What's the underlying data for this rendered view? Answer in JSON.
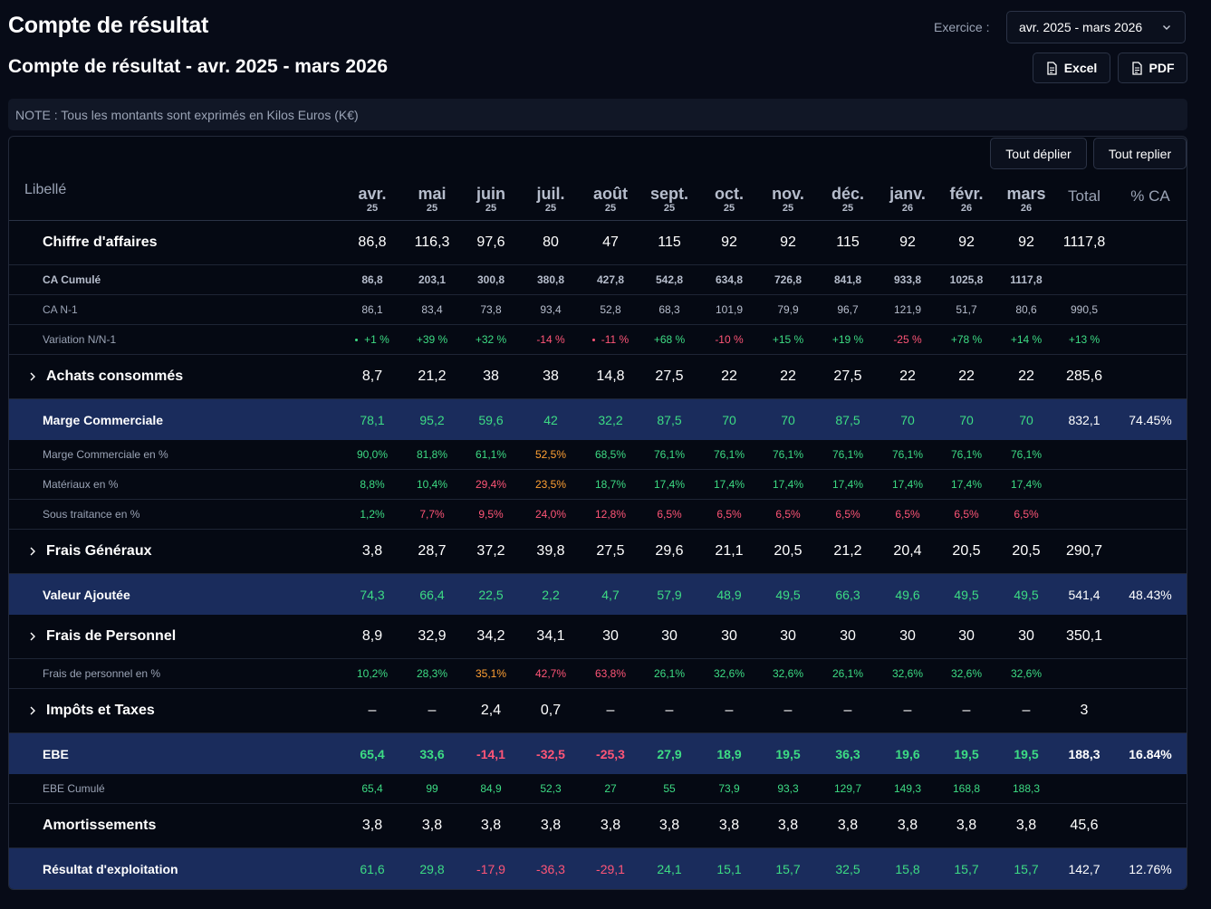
{
  "header": {
    "title": "Compte de résultat",
    "subtitle": "Compte de résultat - avr. 2025 - mars 2026",
    "exercice_label": "Exercice :",
    "exercice_value": "avr. 2025 - mars 2026",
    "excel_label": "Excel",
    "pdf_label": "PDF"
  },
  "note": "NOTE : Tous les montants sont exprimés en Kilos Euros (K€)",
  "table": {
    "expand_all": "Tout déplier",
    "collapse_all": "Tout replier",
    "col_label": "Libellé",
    "months": [
      {
        "m": "avr.",
        "y": "25"
      },
      {
        "m": "mai",
        "y": "25"
      },
      {
        "m": "juin",
        "y": "25"
      },
      {
        "m": "juil.",
        "y": "25"
      },
      {
        "m": "août",
        "y": "25"
      },
      {
        "m": "sept.",
        "y": "25"
      },
      {
        "m": "oct.",
        "y": "25"
      },
      {
        "m": "nov.",
        "y": "25"
      },
      {
        "m": "déc.",
        "y": "25"
      },
      {
        "m": "janv.",
        "y": "26"
      },
      {
        "m": "févr.",
        "y": "26"
      },
      {
        "m": "mars",
        "y": "26"
      }
    ],
    "col_total": "Total",
    "col_pct": "% CA",
    "rows": [
      {
        "label": "Chiffre d'affaires",
        "kind": "major",
        "values": [
          "86,8",
          "116,3",
          "97,6",
          "80",
          "47",
          "115",
          "92",
          "92",
          "115",
          "92",
          "92",
          "92"
        ],
        "total": "1117,8",
        "pct": ""
      },
      {
        "label": "CA Cumulé",
        "kind": "sub-bold",
        "values": [
          "86,8",
          "203,1",
          "300,8",
          "380,8",
          "427,8",
          "542,8",
          "634,8",
          "726,8",
          "841,8",
          "933,8",
          "1025,8",
          "1117,8"
        ],
        "total": "",
        "pct": ""
      },
      {
        "label": "CA N-1",
        "kind": "sub",
        "values": [
          "86,1",
          "83,4",
          "73,8",
          "93,4",
          "52,8",
          "68,3",
          "101,9",
          "79,9",
          "96,7",
          "121,9",
          "51,7",
          "80,6"
        ],
        "total": "990,5",
        "pct": ""
      },
      {
        "label": "Variation N/N-1",
        "kind": "sub-var",
        "values": [
          "+1 %",
          "+39 %",
          "+32 %",
          "-14 %",
          "-11 %",
          "+68 %",
          "-10 %",
          "+15 %",
          "+19 %",
          "-25 %",
          "+78 %",
          "+14 %"
        ],
        "total": "+13 %",
        "pct": ""
      },
      {
        "label": "Achats consommés",
        "kind": "major-exp",
        "values": [
          "8,7",
          "21,2",
          "38",
          "38",
          "14,8",
          "27,5",
          "22",
          "22",
          "27,5",
          "22",
          "22",
          "22"
        ],
        "total": "285,6",
        "pct": ""
      },
      {
        "label": "Marge Commerciale",
        "kind": "hl",
        "values": [
          "78,1",
          "95,2",
          "59,6",
          "42",
          "32,2",
          "87,5",
          "70",
          "70",
          "87,5",
          "70",
          "70",
          "70"
        ],
        "total": "832,1",
        "pct": "74.45%"
      },
      {
        "label": "Marge Commerciale en %",
        "kind": "sub-pct",
        "values": [
          "90,0%",
          "81,8%",
          "61,1%",
          "52,5%",
          "68,5%",
          "76,1%",
          "76,1%",
          "76,1%",
          "76,1%",
          "76,1%",
          "76,1%",
          "76,1%"
        ],
        "colors": [
          "g",
          "g",
          "g",
          "o",
          "g",
          "g",
          "g",
          "g",
          "g",
          "g",
          "g",
          "g"
        ],
        "total": "",
        "pct": ""
      },
      {
        "label": "Matériaux en %",
        "kind": "sub-pct",
        "values": [
          "8,8%",
          "10,4%",
          "29,4%",
          "23,5%",
          "18,7%",
          "17,4%",
          "17,4%",
          "17,4%",
          "17,4%",
          "17,4%",
          "17,4%",
          "17,4%"
        ],
        "colors": [
          "g",
          "g",
          "r",
          "o",
          "g",
          "g",
          "g",
          "g",
          "g",
          "g",
          "g",
          "g"
        ],
        "total": "",
        "pct": ""
      },
      {
        "label": "Sous traitance en %",
        "kind": "sub-pct",
        "values": [
          "1,2%",
          "7,7%",
          "9,5%",
          "24,0%",
          "12,8%",
          "6,5%",
          "6,5%",
          "6,5%",
          "6,5%",
          "6,5%",
          "6,5%",
          "6,5%"
        ],
        "colors": [
          "g",
          "r",
          "r",
          "r",
          "r",
          "r",
          "r",
          "r",
          "r",
          "r",
          "r",
          "r"
        ],
        "total": "",
        "pct": ""
      },
      {
        "label": "Frais Généraux",
        "kind": "major-exp",
        "values": [
          "3,8",
          "28,7",
          "37,2",
          "39,8",
          "27,5",
          "29,6",
          "21,1",
          "20,5",
          "21,2",
          "20,4",
          "20,5",
          "20,5"
        ],
        "total": "290,7",
        "pct": ""
      },
      {
        "label": "Valeur Ajoutée",
        "kind": "hl",
        "values": [
          "74,3",
          "66,4",
          "22,5",
          "2,2",
          "4,7",
          "57,9",
          "48,9",
          "49,5",
          "66,3",
          "49,6",
          "49,5",
          "49,5"
        ],
        "total": "541,4",
        "pct": "48.43%"
      },
      {
        "label": "Frais de Personnel",
        "kind": "major-exp",
        "values": [
          "8,9",
          "32,9",
          "34,2",
          "34,1",
          "30",
          "30",
          "30",
          "30",
          "30",
          "30",
          "30",
          "30"
        ],
        "total": "350,1",
        "pct": ""
      },
      {
        "label": "Frais de personnel en %",
        "kind": "sub-pct",
        "values": [
          "10,2%",
          "28,3%",
          "35,1%",
          "42,7%",
          "63,8%",
          "26,1%",
          "32,6%",
          "32,6%",
          "26,1%",
          "32,6%",
          "32,6%",
          "32,6%"
        ],
        "colors": [
          "g",
          "g",
          "o",
          "r",
          "r",
          "g",
          "g",
          "g",
          "g",
          "g",
          "g",
          "g"
        ],
        "total": "",
        "pct": ""
      },
      {
        "label": "Impôts et Taxes",
        "kind": "major-exp",
        "values": [
          "–",
          "–",
          "2,4",
          "0,7",
          "–",
          "–",
          "–",
          "–",
          "–",
          "–",
          "–",
          "–"
        ],
        "total": "3",
        "pct": ""
      },
      {
        "label": "EBE",
        "kind": "hl-bold",
        "values": [
          "65,4",
          "33,6",
          "-14,1",
          "-32,5",
          "-25,3",
          "27,9",
          "18,9",
          "19,5",
          "36,3",
          "19,6",
          "19,5",
          "19,5"
        ],
        "total": "188,3",
        "pct": "16.84%"
      },
      {
        "label": "EBE Cumulé",
        "kind": "sub-green",
        "values": [
          "65,4",
          "99",
          "84,9",
          "52,3",
          "27",
          "55",
          "73,9",
          "93,3",
          "129,7",
          "149,3",
          "168,8",
          "188,3"
        ],
        "total": "",
        "pct": ""
      },
      {
        "label": "Amortissements",
        "kind": "major",
        "values": [
          "3,8",
          "3,8",
          "3,8",
          "3,8",
          "3,8",
          "3,8",
          "3,8",
          "3,8",
          "3,8",
          "3,8",
          "3,8",
          "3,8"
        ],
        "total": "45,6",
        "pct": ""
      },
      {
        "label": "Résultat d'exploitation",
        "kind": "hl",
        "values": [
          "61,6",
          "29,8",
          "-17,9",
          "-36,3",
          "-29,1",
          "24,1",
          "15,1",
          "15,7",
          "32,5",
          "15,8",
          "15,7",
          "15,7"
        ],
        "total": "142,7",
        "pct": "12.76%"
      }
    ]
  },
  "colors": {
    "background": "#070b17",
    "highlight_row": "#1a2c5c",
    "positive": "#3ddc84",
    "negative": "#ff5577",
    "warning": "#ffa033"
  },
  "icons": {
    "select": "chevron-down-icon",
    "excel": "file-icon",
    "pdf": "file-icon",
    "expand": "chevron-right-icon"
  }
}
